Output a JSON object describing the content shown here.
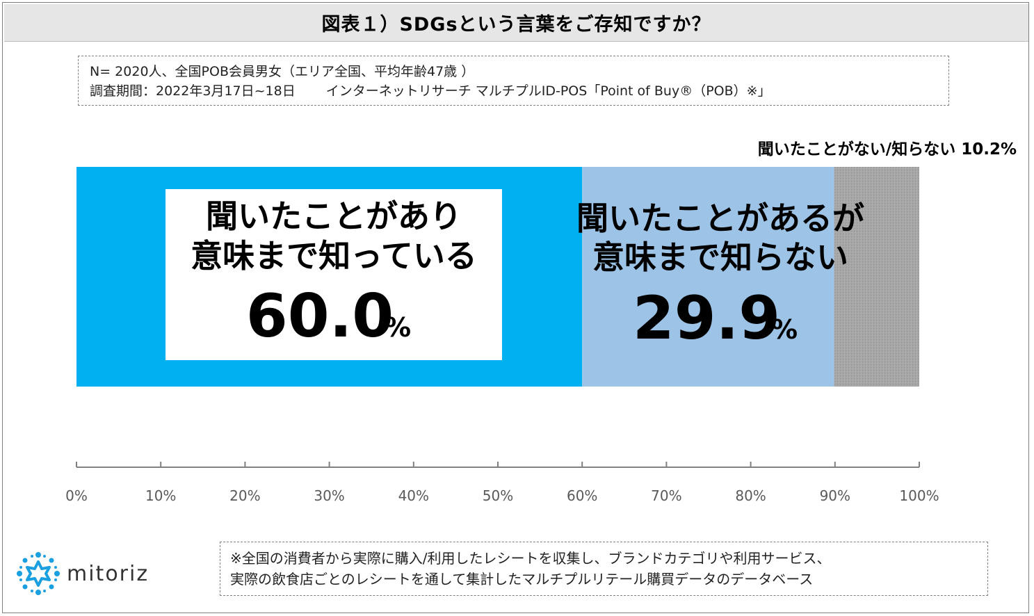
{
  "title": "図表１）SDGsという言葉をご存知ですか？",
  "info": {
    "line1": "N= 2020人、全国POB会員男女（エリア全国、平均年齢47歳 ）",
    "line2a": "調査期間：2022年3月17日~18日",
    "line2b": "インターネットリサーチ マルチプルID-POS「Point of Buy®（POB）※」"
  },
  "chart_data": {
    "type": "bar",
    "orientation": "horizontal",
    "stacked": true,
    "xlim": [
      0,
      100
    ],
    "ticks": [
      "0%",
      "10%",
      "20%",
      "30%",
      "40%",
      "50%",
      "60%",
      "70%",
      "80%",
      "90%",
      "100%"
    ],
    "series": [
      {
        "label_line1": "聞いたことがあり",
        "label_line2": "意味まで知っている",
        "value": 60.0,
        "value_text": "60.0",
        "unit": "%",
        "color": "#00b0f0"
      },
      {
        "label_line1": "聞いたことがあるが",
        "label_line2": "意味まで知らない",
        "value": 29.9,
        "value_text": "29.9",
        "unit": "%",
        "color": "#9dc3e6"
      },
      {
        "label_full": "聞いたことがない/知らない 10.2%",
        "value": 10.2,
        "color": "#a6a6a6"
      }
    ]
  },
  "logo": {
    "text": "mitoriz",
    "icon": "sun-burst-icon",
    "color": "#1a9fe0"
  },
  "footnote": {
    "line1": "※全国の消費者から実際に購入/利用したレシートを収集し、ブランドカテゴリや利用サービス、",
    "line2": "実際の飲食店ごとのレシートを通して集計したマルチプルリテール購買データのデータベース"
  }
}
